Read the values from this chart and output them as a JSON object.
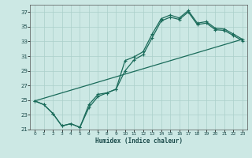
{
  "xlabel": "Humidex (Indice chaleur)",
  "ylabel": "",
  "xlim": [
    -0.5,
    23.5
  ],
  "ylim": [
    21,
    38
  ],
  "yticks": [
    21,
    23,
    25,
    27,
    29,
    31,
    33,
    35,
    37
  ],
  "xticks": [
    0,
    1,
    2,
    3,
    4,
    5,
    6,
    7,
    8,
    9,
    10,
    11,
    12,
    13,
    14,
    15,
    16,
    17,
    18,
    19,
    20,
    21,
    22,
    23
  ],
  "bg_color": "#cce8e4",
  "grid_color": "#aacfca",
  "line_color": "#1a6b5a",
  "line1_y": [
    24.9,
    24.4,
    23.2,
    21.5,
    21.8,
    21.3,
    24.4,
    25.8,
    26.0,
    26.5,
    30.4,
    30.9,
    31.6,
    34.0,
    36.1,
    36.6,
    36.2,
    37.2,
    35.5,
    35.7,
    34.8,
    34.7,
    34.0,
    33.3
  ],
  "line2_y": [
    24.9,
    24.4,
    23.2,
    21.5,
    21.8,
    21.3,
    24.0,
    25.5,
    26.0,
    26.5,
    29.0,
    30.5,
    31.2,
    33.5,
    35.8,
    36.3,
    36.0,
    37.0,
    35.3,
    35.5,
    34.6,
    34.5,
    33.8,
    33.1
  ],
  "line3_y": [
    24.9,
    33.3
  ],
  "line3_x": [
    0,
    23
  ]
}
